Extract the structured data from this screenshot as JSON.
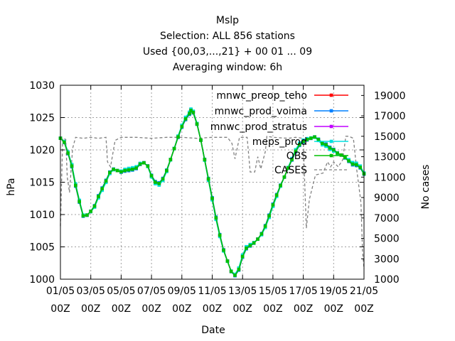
{
  "chart_data": {
    "type": "line",
    "title": "Mslp",
    "subtitle_lines": [
      "Selection: ALL    856 stations",
      "Used {00,03,...,21} + 00 01 ... 09",
      "Averaging window:  6h"
    ],
    "xlabel": "Date",
    "ylabel": "hPa",
    "y2label": "No cases",
    "x_ticks": [
      [
        "01/05",
        "00Z"
      ],
      [
        "03/05",
        "00Z"
      ],
      [
        "05/05",
        "00Z"
      ],
      [
        "07/05",
        "00Z"
      ],
      [
        "09/05",
        "00Z"
      ],
      [
        "11/05",
        "00Z"
      ],
      [
        "13/05",
        "00Z"
      ],
      [
        "15/05",
        "00Z"
      ],
      [
        "17/05",
        "00Z"
      ],
      [
        "19/05",
        "00Z"
      ],
      [
        "21/05",
        "00Z"
      ]
    ],
    "xlim_days": [
      0,
      20
    ],
    "ylim": [
      1000,
      1030
    ],
    "y_ticks": [
      1000,
      1005,
      1010,
      1015,
      1020,
      1025,
      1030
    ],
    "y2lim": [
      1000,
      20000
    ],
    "y2_ticks": [
      1000,
      3000,
      5000,
      7000,
      9000,
      11000,
      13000,
      15000,
      17000,
      19000
    ],
    "grid": true,
    "legend_position": "top-right",
    "series": [
      {
        "name": "mnwc_preop_teho",
        "color": "#ff0000"
      },
      {
        "name": "mnwc_prod_voima",
        "color": "#0080ff"
      },
      {
        "name": "mnwc_prod_stratus",
        "color": "#c000ff"
      },
      {
        "name": "meps_prod",
        "color": "#00e0e0"
      },
      {
        "name": "OBS",
        "color": "#00c000"
      },
      {
        "name": "CASES",
        "color": "#808080",
        "style": "dashed",
        "axis": "y2"
      }
    ],
    "mslp_points": [
      [
        0.0,
        1021.8
      ],
      [
        0.25,
        1021.2
      ],
      [
        0.5,
        1019.5
      ],
      [
        0.75,
        1017.5
      ],
      [
        1.0,
        1014.5
      ],
      [
        1.25,
        1012.0
      ],
      [
        1.5,
        1009.8
      ],
      [
        1.75,
        1009.9
      ],
      [
        2.0,
        1010.5
      ],
      [
        2.25,
        1011.3
      ],
      [
        2.5,
        1012.8
      ],
      [
        2.75,
        1014.0
      ],
      [
        3.0,
        1015.2
      ],
      [
        3.25,
        1016.5
      ],
      [
        3.5,
        1017.0
      ],
      [
        3.75,
        1016.8
      ],
      [
        4.0,
        1016.6
      ],
      [
        4.25,
        1016.8
      ],
      [
        4.5,
        1016.9
      ],
      [
        4.75,
        1017.0
      ],
      [
        5.0,
        1017.2
      ],
      [
        5.25,
        1017.8
      ],
      [
        5.5,
        1018.0
      ],
      [
        5.75,
        1017.5
      ],
      [
        6.0,
        1016.0
      ],
      [
        6.25,
        1015.0
      ],
      [
        6.5,
        1014.8
      ],
      [
        6.75,
        1015.5
      ],
      [
        7.0,
        1016.8
      ],
      [
        7.25,
        1018.5
      ],
      [
        7.5,
        1020.2
      ],
      [
        7.75,
        1022.0
      ],
      [
        8.0,
        1023.6
      ],
      [
        8.25,
        1024.8
      ],
      [
        8.5,
        1025.6
      ],
      [
        8.6,
        1026.1
      ],
      [
        8.75,
        1025.8
      ],
      [
        9.0,
        1024.0
      ],
      [
        9.25,
        1021.5
      ],
      [
        9.5,
        1018.5
      ],
      [
        9.75,
        1015.5
      ],
      [
        10.0,
        1012.5
      ],
      [
        10.25,
        1009.5
      ],
      [
        10.5,
        1006.8
      ],
      [
        10.75,
        1004.5
      ],
      [
        11.0,
        1002.8
      ],
      [
        11.25,
        1001.2
      ],
      [
        11.5,
        1000.6
      ],
      [
        11.75,
        1001.5
      ],
      [
        12.0,
        1003.5
      ],
      [
        12.25,
        1004.8
      ],
      [
        12.5,
        1005.2
      ],
      [
        12.75,
        1005.6
      ],
      [
        13.0,
        1006.2
      ],
      [
        13.25,
        1007.0
      ],
      [
        13.5,
        1008.2
      ],
      [
        13.75,
        1009.8
      ],
      [
        14.0,
        1011.5
      ],
      [
        14.25,
        1013.0
      ],
      [
        14.5,
        1014.5
      ],
      [
        14.75,
        1015.8
      ],
      [
        15.0,
        1017.2
      ],
      [
        15.25,
        1018.5
      ],
      [
        15.5,
        1019.8
      ],
      [
        15.75,
        1020.8
      ],
      [
        16.0,
        1021.3
      ],
      [
        16.25,
        1021.6
      ],
      [
        16.5,
        1021.8
      ],
      [
        16.75,
        1022.0
      ],
      [
        17.0,
        1021.6
      ],
      [
        17.25,
        1021.0
      ],
      [
        17.5,
        1020.8
      ],
      [
        17.75,
        1020.3
      ],
      [
        18.0,
        1020.0
      ],
      [
        18.25,
        1019.5
      ],
      [
        18.5,
        1019.2
      ],
      [
        18.75,
        1018.8
      ],
      [
        19.0,
        1018.3
      ],
      [
        19.25,
        1017.8
      ],
      [
        19.5,
        1017.7
      ],
      [
        19.75,
        1017.3
      ],
      [
        20.0,
        1016.3
      ]
    ],
    "cases_points": [
      [
        0.0,
        6200
      ],
      [
        0.15,
        14800
      ],
      [
        0.35,
        14700
      ],
      [
        0.45,
        11000
      ],
      [
        0.6,
        9500
      ],
      [
        0.8,
        13800
      ],
      [
        1.0,
        14900
      ],
      [
        1.5,
        14800
      ],
      [
        2.0,
        14900
      ],
      [
        2.5,
        14800
      ],
      [
        3.0,
        14900
      ],
      [
        3.1,
        12500
      ],
      [
        3.3,
        12000
      ],
      [
        3.6,
        14600
      ],
      [
        4.0,
        14900
      ],
      [
        5.0,
        14900
      ],
      [
        6.0,
        14800
      ],
      [
        7.0,
        14900
      ],
      [
        8.0,
        14900
      ],
      [
        9.0,
        14800
      ],
      [
        10.0,
        14900
      ],
      [
        11.0,
        14900
      ],
      [
        11.3,
        14300
      ],
      [
        11.5,
        12800
      ],
      [
        11.8,
        14900
      ],
      [
        12.3,
        14900
      ],
      [
        12.5,
        11500
      ],
      [
        12.8,
        11500
      ],
      [
        13.0,
        13000
      ],
      [
        13.2,
        11800
      ],
      [
        13.5,
        13500
      ],
      [
        13.6,
        15000
      ],
      [
        14.0,
        14900
      ],
      [
        15.0,
        14800
      ],
      [
        15.5,
        14900
      ],
      [
        16.0,
        14800
      ],
      [
        16.1,
        10200
      ],
      [
        16.2,
        6000
      ],
      [
        16.4,
        8800
      ],
      [
        16.8,
        11200
      ],
      [
        17.3,
        11400
      ],
      [
        17.6,
        12500
      ],
      [
        17.8,
        12000
      ],
      [
        18.0,
        12500
      ],
      [
        18.3,
        12000
      ],
      [
        18.6,
        12700
      ],
      [
        18.8,
        15000
      ],
      [
        19.0,
        15000
      ],
      [
        19.3,
        14800
      ],
      [
        19.5,
        12000
      ],
      [
        19.8,
        8500
      ],
      [
        19.9,
        3800
      ],
      [
        20.0,
        2000
      ]
    ]
  }
}
